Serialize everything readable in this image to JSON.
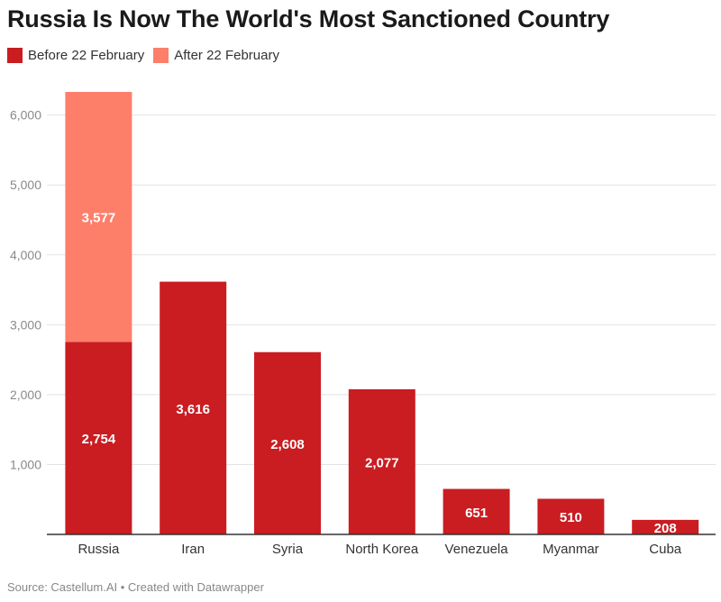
{
  "colors": {
    "before": "#c91d22",
    "after": "#fd7f6a",
    "axis_text": "#8a8a8a",
    "grid": "#e3e3e3",
    "category_text": "#333333",
    "value_text": "#ffffff"
  },
  "legend": {
    "before_label": "Before 22 February",
    "after_label": "After 22 February"
  },
  "footer": {
    "source": "Source: Castellum.AI",
    "separator": " • ",
    "credit": "Created with Datawrapper"
  },
  "chart_data": {
    "type": "bar",
    "stacked": true,
    "title": "Russia Is Now The World's Most Sanctioned Country",
    "xlabel": "",
    "ylabel": "",
    "ylim": [
      0,
      6331
    ],
    "yticks": [
      1000,
      2000,
      3000,
      4000,
      5000,
      6000
    ],
    "ytick_labels": [
      "1,000",
      "2,000",
      "3,000",
      "4,000",
      "5,000",
      "6,000"
    ],
    "categories": [
      "Russia",
      "Iran",
      "Syria",
      "North Korea",
      "Venezuela",
      "Myanmar",
      "Cuba"
    ],
    "series": [
      {
        "name": "Before 22 February",
        "values": [
          2754,
          3616,
          2608,
          2077,
          651,
          510,
          208
        ],
        "labels": [
          "2,754",
          "3,616",
          "2,608",
          "2,077",
          "651",
          "510",
          "208"
        ]
      },
      {
        "name": "After 22 February",
        "values": [
          3577,
          0,
          0,
          0,
          0,
          0,
          0
        ],
        "labels": [
          "3,577",
          "",
          "",
          "",
          "",
          "",
          ""
        ]
      }
    ],
    "grid": true,
    "legend_position": "top-left"
  }
}
